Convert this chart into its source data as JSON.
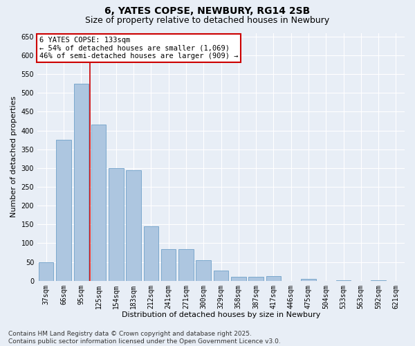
{
  "title": "6, YATES COPSE, NEWBURY, RG14 2SB",
  "subtitle": "Size of property relative to detached houses in Newbury",
  "xlabel": "Distribution of detached houses by size in Newbury",
  "ylabel": "Number of detached properties",
  "categories": [
    "37sqm",
    "66sqm",
    "95sqm",
    "125sqm",
    "154sqm",
    "183sqm",
    "212sqm",
    "241sqm",
    "271sqm",
    "300sqm",
    "329sqm",
    "358sqm",
    "387sqm",
    "417sqm",
    "446sqm",
    "475sqm",
    "504sqm",
    "533sqm",
    "563sqm",
    "592sqm",
    "621sqm"
  ],
  "values": [
    50,
    375,
    525,
    415,
    300,
    295,
    145,
    85,
    85,
    55,
    28,
    10,
    10,
    13,
    0,
    5,
    0,
    1,
    0,
    1,
    0
  ],
  "bar_color": "#adc6e0",
  "bar_edgecolor": "#6fa0c8",
  "background_color": "#e8eef6",
  "grid_color": "#ffffff",
  "annotation_line1": "6 YATES COPSE: 133sqm",
  "annotation_line2": "← 54% of detached houses are smaller (1,069)",
  "annotation_line3": "46% of semi-detached houses are larger (909) →",
  "annotation_box_edgecolor": "#cc0000",
  "vline_index": 2.5,
  "vline_color": "#cc0000",
  "ylim": [
    0,
    660
  ],
  "yticks": [
    0,
    50,
    100,
    150,
    200,
    250,
    300,
    350,
    400,
    450,
    500,
    550,
    600,
    650
  ],
  "footer": "Contains HM Land Registry data © Crown copyright and database right 2025.\nContains public sector information licensed under the Open Government Licence v3.0.",
  "title_fontsize": 10,
  "subtitle_fontsize": 9,
  "xlabel_fontsize": 8,
  "ylabel_fontsize": 8,
  "tick_fontsize": 7,
  "annotation_fontsize": 7.5,
  "footer_fontsize": 6.5
}
